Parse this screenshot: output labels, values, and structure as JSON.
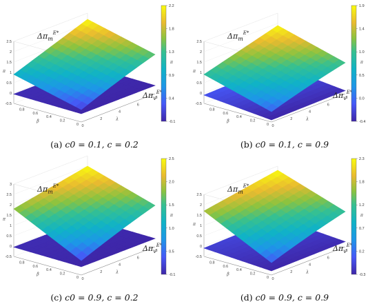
{
  "chart_data": [
    {
      "type": "surface3d",
      "caption": "(a)  c0 = 0.1, c = 0.2",
      "caption_parts": {
        "label": "(a)",
        "c0": "c0 = 0.1,",
        "c": "c = 0.2"
      },
      "xlabel": "λ",
      "ylabel": "β",
      "zlabel": "π",
      "x_ticks": [
        "0",
        "2",
        "4",
        "6",
        "8"
      ],
      "y_ticks": [
        "0",
        "0.2",
        "0.4",
        "0.6",
        "0.8"
      ],
      "z_ticks": [
        "-0.5",
        "0",
        "0.5",
        "1",
        "1.5",
        "2",
        "2.5"
      ],
      "colorbar_ticks": [
        "2.2",
        "1.8",
        "1.3",
        "0.9",
        "0.4",
        "-0.1"
      ],
      "colorbar_range": [
        -0.1,
        2.2
      ],
      "zlim": [
        -0.5,
        2.5
      ],
      "series": [
        {
          "name": "Δπ_m^E*",
          "corner_values": {
            "lambda0_beta0": 0.1,
            "lambda0_beta1": 0.9,
            "lambda8_beta1": 2.2,
            "lambda8_beta0": 1.4
          }
        },
        {
          "name": "Δπ_v^E*",
          "corner_values": {
            "lambda0_beta0": -0.1,
            "lambda0_beta1": -0.05,
            "lambda8_beta1": -0.05,
            "lambda8_beta0": -0.1
          }
        }
      ]
    },
    {
      "type": "surface3d",
      "caption": "(b)  c0 = 0.1, c = 0.9",
      "caption_parts": {
        "label": "(b)",
        "c0": "c0 = 0.1,",
        "c": "c = 0.9"
      },
      "xlabel": "λ",
      "ylabel": "β",
      "zlabel": "π",
      "x_ticks": [
        "0",
        "2",
        "4",
        "6",
        "8"
      ],
      "y_ticks": [
        "0",
        "0.2",
        "0.4",
        "0.6",
        "0.8"
      ],
      "z_ticks": [
        "-0.5",
        "0",
        "0.5",
        "1",
        "1.5",
        "2",
        "2.5"
      ],
      "colorbar_ticks": [
        "1.9",
        "1.4",
        "1.0",
        "0.5",
        "0.0",
        "-0.4"
      ],
      "colorbar_range": [
        -0.4,
        1.9
      ],
      "zlim": [
        -0.5,
        2.5
      ],
      "series": [
        {
          "name": "Δπ_m^E*",
          "corner_values": {
            "lambda0_beta0": 0.0,
            "lambda0_beta1": 0.9,
            "lambda8_beta1": 1.9,
            "lambda8_beta0": 1.0
          }
        },
        {
          "name": "Δπ_v^E*",
          "corner_values": {
            "lambda0_beta0": -0.4,
            "lambda0_beta1": -0.1,
            "lambda8_beta1": 0.0,
            "lambda8_beta0": -0.35
          }
        }
      ]
    },
    {
      "type": "surface3d",
      "caption": "(c)  c0 = 0.9, c = 0.2",
      "caption_parts": {
        "label": "(c)",
        "c0": "c0 = 0.9,",
        "c": "c = 0.2"
      },
      "xlabel": "λ",
      "ylabel": "β",
      "zlabel": "π",
      "x_ticks": [
        "0",
        "2",
        "4",
        "6",
        "8"
      ],
      "y_ticks": [
        "0",
        "0.2",
        "0.4",
        "0.6",
        "0.8"
      ],
      "z_ticks": [
        "-0.5",
        "0",
        "0.5",
        "1",
        "1.5",
        "2",
        "2.5",
        "3"
      ],
      "colorbar_ticks": [
        "2.5",
        "2.0",
        "1.5",
        "1.0",
        "0.5",
        "-0.1"
      ],
      "colorbar_range": [
        -0.1,
        2.5
      ],
      "zlim": [
        -0.5,
        3.0
      ],
      "series": [
        {
          "name": "Δπ_m^E*",
          "corner_values": {
            "lambda0_beta0": 0.2,
            "lambda0_beta1": 1.8,
            "lambda8_beta1": 2.5,
            "lambda8_beta0": 1.5
          }
        },
        {
          "name": "Δπ_v^E*",
          "corner_values": {
            "lambda0_beta0": -0.1,
            "lambda0_beta1": -0.05,
            "lambda8_beta1": -0.05,
            "lambda8_beta0": -0.1
          }
        }
      ]
    },
    {
      "type": "surface3d",
      "caption": "(d)  c0 = 0.9, c = 0.9",
      "caption_parts": {
        "label": "(d)",
        "c0": "c0 = 0.9,",
        "c": "c = 0.9"
      },
      "xlabel": "λ",
      "ylabel": "β",
      "zlabel": "π",
      "x_ticks": [
        "0",
        "2",
        "4",
        "6",
        "8"
      ],
      "y_ticks": [
        "0",
        "0.2",
        "0.4",
        "0.6",
        "0.8"
      ],
      "z_ticks": [
        "-0.5",
        "0",
        "0.5",
        "1",
        "1.5",
        "2",
        "2.5"
      ],
      "colorbar_ticks": [
        "2.3",
        "1.8",
        "1.2",
        "0.7",
        "0.2",
        "-0.3"
      ],
      "colorbar_range": [
        -0.3,
        2.3
      ],
      "zlim": [
        -0.5,
        2.5
      ],
      "series": [
        {
          "name": "Δπ_m^E*",
          "corner_values": {
            "lambda0_beta0": 0.1,
            "lambda0_beta1": 1.7,
            "lambda8_beta1": 2.3,
            "lambda8_beta0": 1.2
          }
        },
        {
          "name": "Δπ_v^E*",
          "corner_values": {
            "lambda0_beta0": -0.3,
            "lambda0_beta1": -0.1,
            "lambda8_beta1": 0.0,
            "lambda8_beta0": -0.25
          }
        }
      ]
    }
  ]
}
